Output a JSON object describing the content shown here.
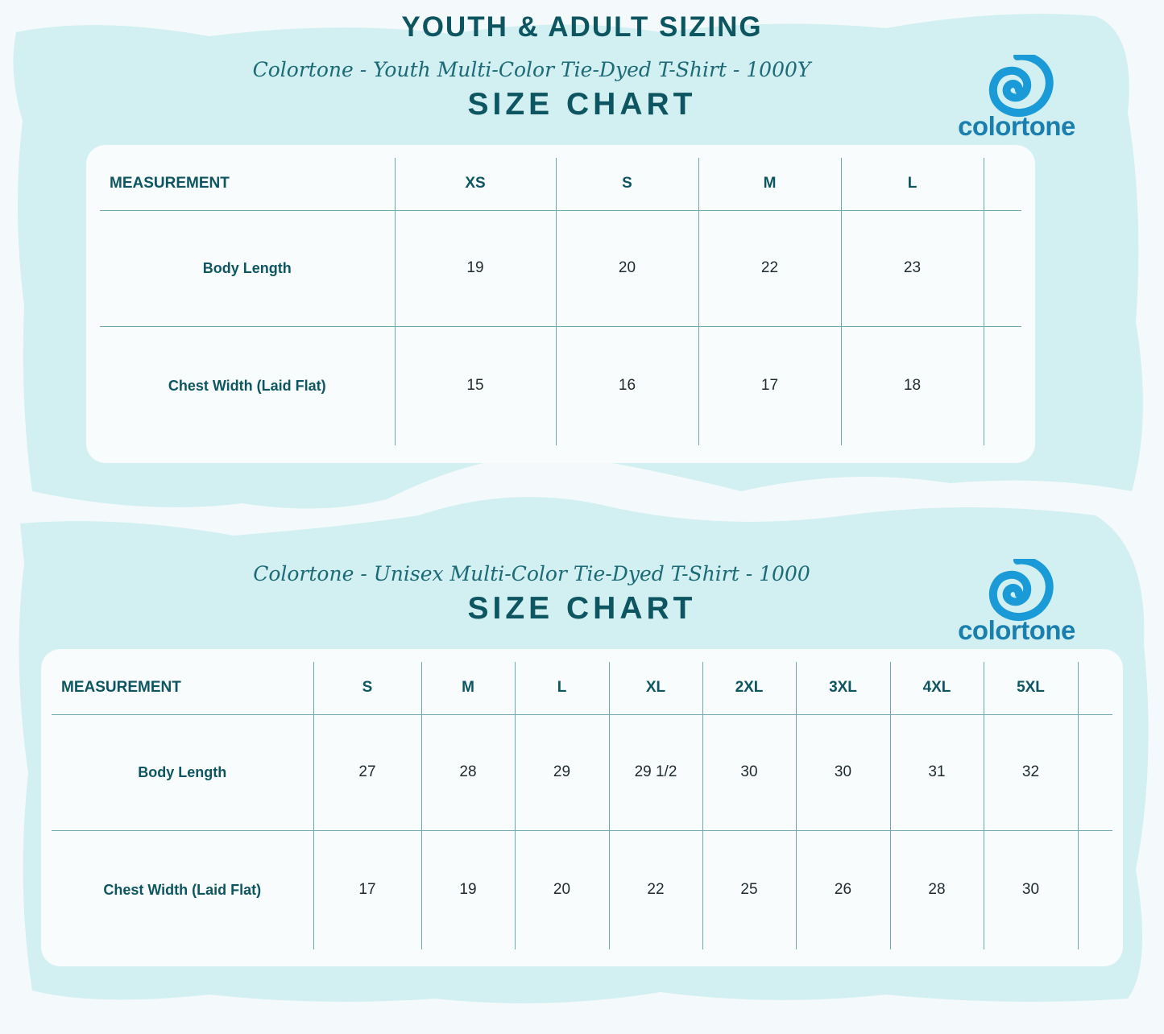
{
  "page": {
    "main_title": "YOUTH & ADULT SIZING"
  },
  "youth": {
    "subtitle": "Colortone - Youth Multi-Color Tie-Dyed T-Shirt - 1000Y",
    "chart_title": "SIZE CHART",
    "logo_text": "colortone",
    "header_label": "MEASUREMENT",
    "sizes": [
      "XS",
      "S",
      "M",
      "L"
    ],
    "rows": [
      {
        "label": "Body Length",
        "values": [
          "19",
          "20",
          "22",
          "23"
        ]
      },
      {
        "label": "Chest Width (Laid Flat)",
        "values": [
          "15",
          "16",
          "17",
          "18"
        ]
      }
    ]
  },
  "adult": {
    "subtitle": "Colortone - Unisex Multi-Color Tie-Dyed T-Shirt - 1000",
    "chart_title": "SIZE CHART",
    "logo_text": "colortone",
    "header_label": "MEASUREMENT",
    "sizes": [
      "S",
      "M",
      "L",
      "XL",
      "2XL",
      "3XL",
      "4XL",
      "5XL"
    ],
    "rows": [
      {
        "label": "Body Length",
        "values": [
          "27",
          "28",
          "29",
          "29 1/2",
          "30",
          "30",
          "31",
          "32"
        ]
      },
      {
        "label": "Chest Width (Laid Flat)",
        "values": [
          "17",
          "19",
          "20",
          "22",
          "25",
          "26",
          "28",
          "30"
        ]
      }
    ]
  },
  "colors": {
    "title": "#0d5560",
    "logo": "#1a9ad6",
    "background_wash": "#d2eff1"
  }
}
